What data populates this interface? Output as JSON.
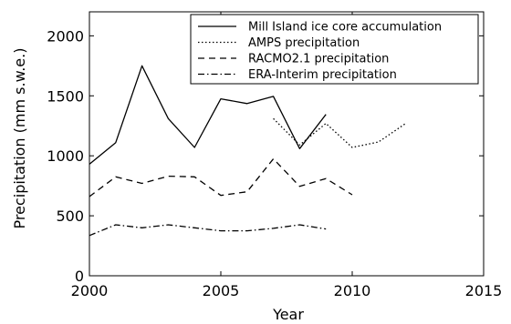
{
  "chart_data": {
    "type": "line",
    "xlabel": "Year",
    "ylabel": "Precipitation (mm s.w.e.)",
    "xlim": [
      2000,
      2015
    ],
    "ylim": [
      0,
      2200
    ],
    "xticks": [
      2000,
      2005,
      2010,
      2015
    ],
    "yticks": [
      0,
      500,
      1000,
      1500,
      2000
    ],
    "grid": false,
    "legend_position": "top-right",
    "series": [
      {
        "name": "Mill Island ice core accumulation",
        "style": "solid",
        "x": [
          2000,
          2001,
          2002,
          2003,
          2004,
          2005,
          2006,
          2007,
          2008,
          2009
        ],
        "y": [
          930,
          1110,
          1750,
          1310,
          1070,
          1475,
          1435,
          1495,
          1060,
          1345
        ]
      },
      {
        "name": "AMPS precipitation",
        "style": "dotted",
        "x": [
          2007,
          2008,
          2009,
          2010,
          2011,
          2012
        ],
        "y": [
          1310,
          1090,
          1270,
          1070,
          1115,
          1265
        ]
      },
      {
        "name": "RACMO2.1 precipitation",
        "style": "dashed",
        "x": [
          2000,
          2001,
          2002,
          2003,
          2004,
          2005,
          2006,
          2007,
          2008,
          2009,
          2010
        ],
        "y": [
          660,
          825,
          770,
          830,
          825,
          670,
          700,
          975,
          745,
          810,
          675
        ]
      },
      {
        "name": "ERA-Interim precipitation",
        "style": "dashdot",
        "x": [
          2000,
          2001,
          2002,
          2003,
          2004,
          2005,
          2006,
          2007,
          2008,
          2009
        ],
        "y": [
          335,
          425,
          400,
          425,
          400,
          375,
          375,
          395,
          425,
          390
        ]
      }
    ],
    "colors": {
      "line": "#000000",
      "background": "#ffffff"
    }
  }
}
